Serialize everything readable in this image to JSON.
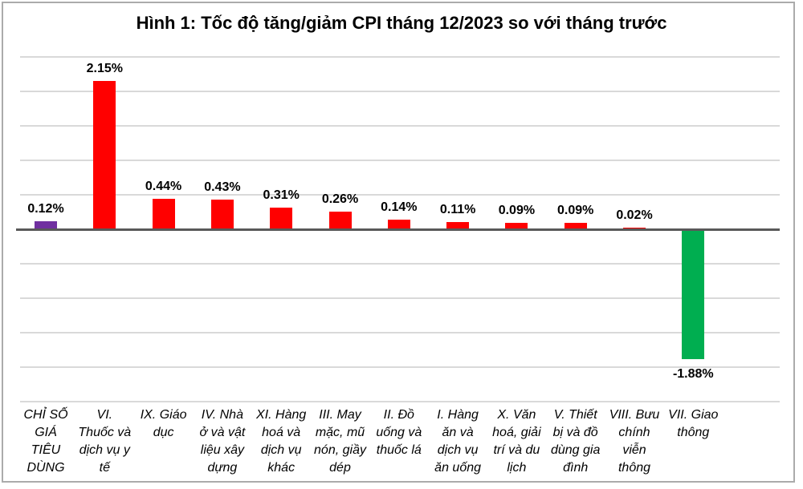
{
  "chart_data": {
    "type": "bar",
    "title": "Hình 1: Tốc độ tăng/giảm CPI tháng 12/2023 so với tháng trước",
    "xlabel": "",
    "ylabel": "",
    "unit": "%",
    "ylim": [
      -2.5,
      2.5
    ],
    "gridline_interval": 0.5,
    "grid": "on",
    "legend": "none",
    "categories": [
      "CHỈ SỐ\nGIÁ\nTIÊU\nDÙNG",
      "VI.\nThuốc và\ndịch vụ y\ntế",
      "IX. Giáo\ndục",
      "IV. Nhà\nở và vật\nliệu xây\ndựng",
      "XI. Hàng\nhoá và\ndịch vụ\nkhác",
      "III. May\nmặc, mũ\nnón, giầy\ndép",
      "II. Đồ\nuống và\nthuốc lá",
      "I. Hàng\năn và\ndịch vụ\năn uống",
      "X. Văn\nhoá, giải\ntrí và du\nlịch",
      "V. Thiết\nbị và đồ\ndùng gia\nđình",
      "VIII. Bưu\nchính\nviễn\nthông",
      "VII. Giao\nthông"
    ],
    "values": [
      0.12,
      2.15,
      0.44,
      0.43,
      0.31,
      0.26,
      0.14,
      0.11,
      0.09,
      0.09,
      0.02,
      -1.88
    ],
    "value_labels": [
      "0.12%",
      "2.15%",
      "0.44%",
      "0.43%",
      "0.31%",
      "0.26%",
      "0.14%",
      "0.11%",
      "0.09%",
      "0.09%",
      "0.02%",
      "-1.88%"
    ],
    "bar_colors": [
      "#7030A0",
      "#FF0000",
      "#FF0000",
      "#FF0000",
      "#FF0000",
      "#FF0000",
      "#FF0000",
      "#FF0000",
      "#FF0000",
      "#FF0000",
      "#FF0000",
      "#00AE50"
    ],
    "colors": {
      "cpi_index_bar": "#7030A0",
      "increase_bar": "#FF0000",
      "decrease_bar": "#00AE50",
      "axis_line": "#595959",
      "gridline": "#D9D9D9",
      "frame_border": "#ABABAB",
      "text": "#000000"
    }
  }
}
